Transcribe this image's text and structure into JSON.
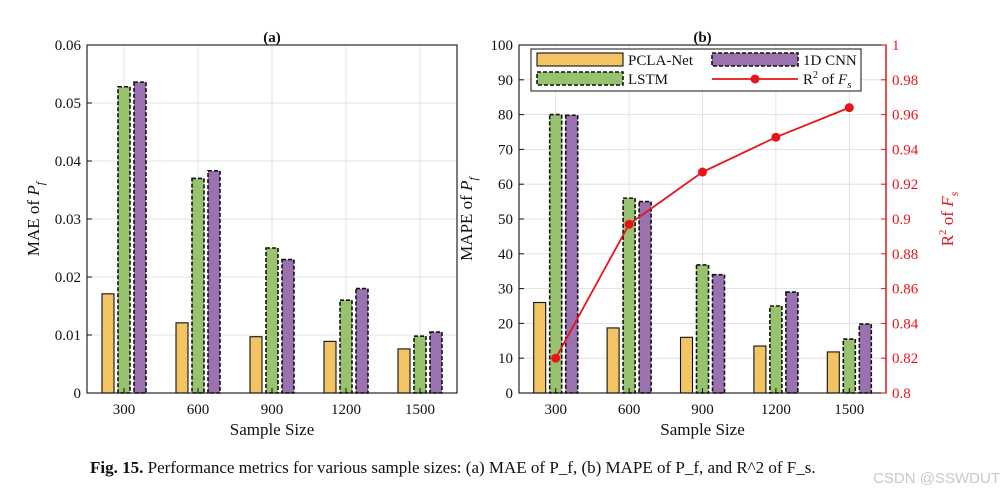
{
  "chart_data": [
    {
      "type": "bar",
      "title": "(a)",
      "xlabel": "Sample Size",
      "ylabel": "MAE of P_f",
      "ylabel_main": "MAE of ",
      "ylabel_sym": "P",
      "ylabel_sub": "f",
      "categories": [
        "300",
        "600",
        "900",
        "1200",
        "1500"
      ],
      "ylim": [
        0,
        0.06
      ],
      "yticks": [
        "0",
        "0.01",
        "0.02",
        "0.03",
        "0.04",
        "0.05",
        "0.06"
      ],
      "grid": true,
      "series": [
        {
          "name": "PCLA-Net",
          "color": "#f2c464",
          "values": [
            0.0171,
            0.0121,
            0.0097,
            0.0089,
            0.0076
          ]
        },
        {
          "name": "LSTM",
          "color": "#98c26e",
          "values": [
            0.0528,
            0.037,
            0.025,
            0.016,
            0.0098
          ]
        },
        {
          "name": "1D CNN",
          "color": "#9b72b0",
          "values": [
            0.0536,
            0.0383,
            0.023,
            0.018,
            0.0105
          ]
        }
      ]
    },
    {
      "type": "bar",
      "title": "(b)",
      "xlabel": "Sample Size",
      "ylabel": "MAPE of P_f",
      "ylabel_main": "MAPE of ",
      "ylabel_sym": "P",
      "ylabel_sub": "f",
      "y2label": "R^2 of F_s",
      "y2label_main": "R",
      "y2label_sup": "2",
      "y2label_mid": " of ",
      "y2label_sym": "F",
      "y2label_sub": "s",
      "categories": [
        "300",
        "600",
        "900",
        "1200",
        "1500"
      ],
      "ylim": [
        0,
        100
      ],
      "yticks": [
        "0",
        "10",
        "20",
        "30",
        "40",
        "50",
        "60",
        "70",
        "80",
        "90",
        "100"
      ],
      "y2lim": [
        0.8,
        1.0
      ],
      "y2ticks": [
        "0.8",
        "0.82",
        "0.84",
        "0.86",
        "0.88",
        "0.9",
        "0.92",
        "0.94",
        "0.96",
        "0.98",
        "1"
      ],
      "grid": true,
      "legend_position": "top",
      "series": [
        {
          "name": "PCLA-Net",
          "color": "#f2c464",
          "values": [
            26.0,
            18.7,
            16.0,
            13.5,
            11.8
          ]
        },
        {
          "name": "LSTM",
          "color": "#98c26e",
          "values": [
            80.0,
            56.0,
            36.8,
            25.0,
            15.5
          ]
        },
        {
          "name": "1D CNN",
          "color": "#9b72b0",
          "values": [
            79.8,
            55.0,
            34.0,
            29.0,
            19.8
          ]
        }
      ],
      "line_series": {
        "name": "R2 of Fs",
        "legend_main": "R",
        "legend_sup": "2",
        "legend_mid": " of ",
        "legend_sym": "F",
        "legend_sub": "s",
        "color": "#e8141c",
        "axis": "right",
        "values": [
          0.82,
          0.897,
          0.927,
          0.947,
          0.964
        ]
      }
    }
  ],
  "caption": {
    "label": "Fig. 15.",
    "text": "Performance metrics for various sample sizes: (a) MAE of P_f, (b) MAPE of P_f, and R^2 of F_s."
  },
  "watermark": "CSDN @SSWDUT"
}
